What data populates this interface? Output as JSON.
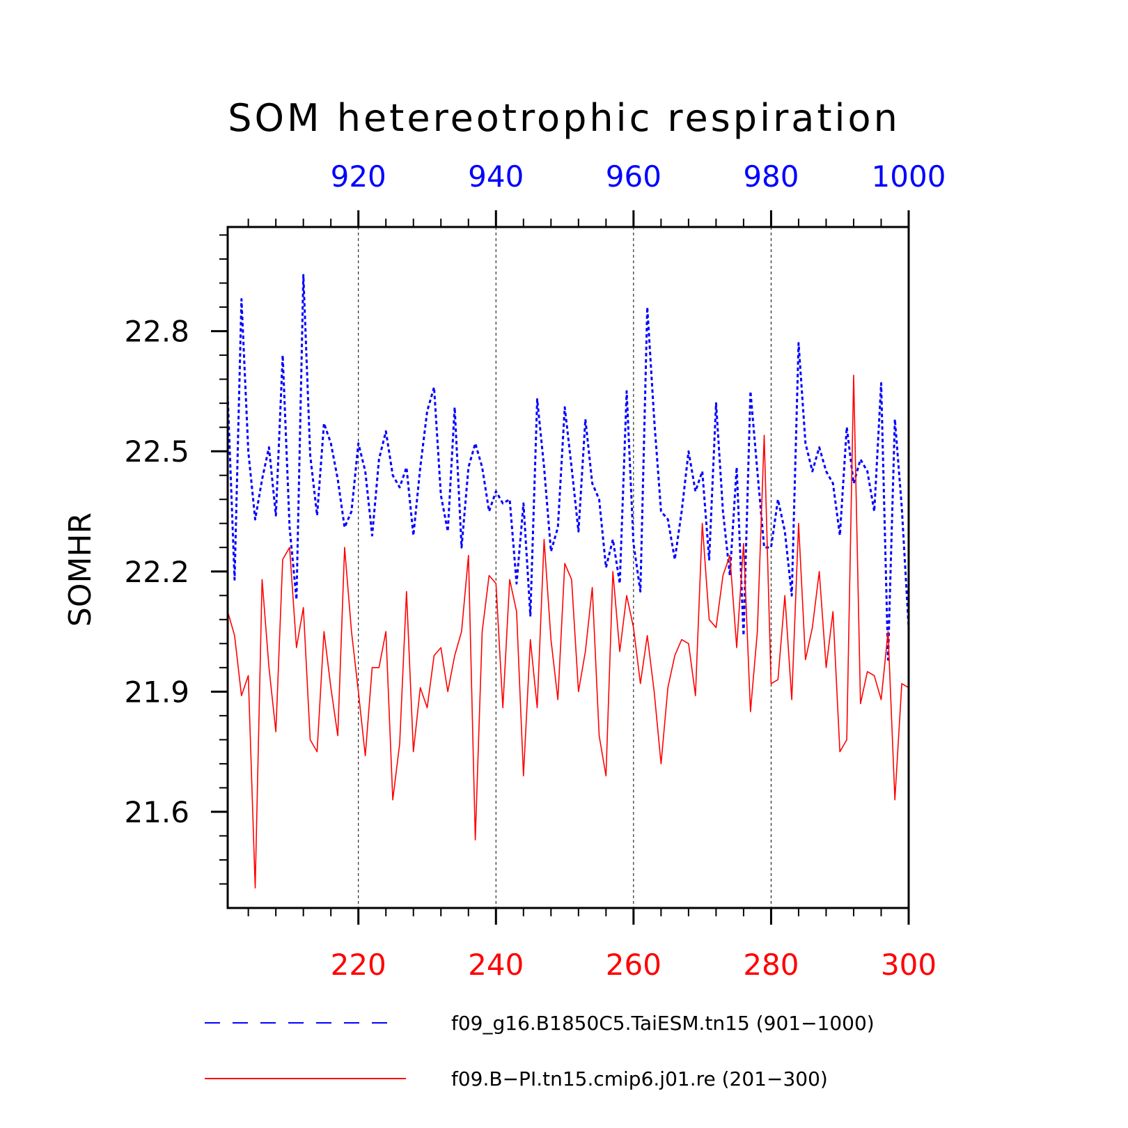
{
  "chart_data": {
    "type": "line",
    "title": "SOM hetereotrophic respiration",
    "ylabel": "SOMHR",
    "ylim": [
      21.36,
      23.06
    ],
    "yticks": [
      21.6,
      21.9,
      22.2,
      22.5,
      22.8
    ],
    "ytick_labels": [
      "21.6",
      "21.9",
      "22.2",
      "22.5",
      "22.8"
    ],
    "x_bottom": {
      "range": [
        201,
        300
      ],
      "ticks": [
        220,
        240,
        260,
        280,
        300
      ],
      "labels": [
        "220",
        "240",
        "260",
        "280",
        "300"
      ],
      "color": "#ff0000"
    },
    "x_top": {
      "range": [
        901,
        1000
      ],
      "ticks": [
        920,
        940,
        960,
        980,
        1000
      ],
      "labels": [
        "920",
        "940",
        "960",
        "980",
        "1000"
      ],
      "color": "#0000ff"
    },
    "grid": "vertical dashed at major ticks",
    "legend_placement": "bottom",
    "series": [
      {
        "name": "f09_g16.B1850C5.TaiESM.tn15 (901−1000)",
        "axis": "top",
        "color": "#0000ff",
        "style": "dashed",
        "x": [
          901,
          902,
          903,
          904,
          905,
          906,
          907,
          908,
          909,
          910,
          911,
          912,
          913,
          914,
          915,
          916,
          917,
          918,
          919,
          920,
          921,
          922,
          923,
          924,
          925,
          926,
          927,
          928,
          929,
          930,
          931,
          932,
          933,
          934,
          935,
          936,
          937,
          938,
          939,
          940,
          941,
          942,
          943,
          944,
          945,
          946,
          947,
          948,
          949,
          950,
          951,
          952,
          953,
          954,
          955,
          956,
          957,
          958,
          959,
          960,
          961,
          962,
          963,
          964,
          965,
          966,
          967,
          968,
          969,
          970,
          971,
          972,
          973,
          974,
          975,
          976,
          977,
          978,
          979,
          980,
          981,
          982,
          983,
          984,
          985,
          986,
          987,
          988,
          989,
          990,
          991,
          992,
          993,
          994,
          995,
          996,
          997,
          998,
          999,
          1000
        ],
        "values": [
          22.64,
          22.18,
          22.88,
          22.5,
          22.33,
          22.43,
          22.51,
          22.34,
          22.74,
          22.31,
          22.13,
          22.94,
          22.49,
          22.34,
          22.57,
          22.52,
          22.43,
          22.31,
          22.35,
          22.52,
          22.45,
          22.29,
          22.48,
          22.55,
          22.44,
          22.41,
          22.46,
          22.29,
          22.46,
          22.6,
          22.66,
          22.39,
          22.3,
          22.61,
          22.26,
          22.46,
          22.52,
          22.46,
          22.35,
          22.4,
          22.37,
          22.38,
          22.17,
          22.37,
          22.09,
          22.63,
          22.46,
          22.25,
          22.31,
          22.61,
          22.46,
          22.3,
          22.58,
          22.42,
          22.38,
          22.21,
          22.28,
          22.17,
          22.65,
          22.27,
          22.15,
          22.86,
          22.58,
          22.35,
          22.33,
          22.23,
          22.35,
          22.5,
          22.4,
          22.45,
          22.23,
          22.62,
          22.35,
          22.19,
          22.46,
          22.04,
          22.65,
          22.45,
          22.26,
          22.26,
          22.38,
          22.3,
          22.14,
          22.77,
          22.52,
          22.45,
          22.51,
          22.45,
          22.42,
          22.29,
          22.56,
          22.42,
          22.48,
          22.45,
          22.35,
          22.67,
          21.98,
          22.58,
          22.36,
          22.06
        ]
      },
      {
        "name": "f09.B−PI.tn15.cmip6.j01.re (201−300)",
        "axis": "bottom",
        "color": "#ff0000",
        "style": "solid",
        "x": [
          201,
          202,
          203,
          204,
          205,
          206,
          207,
          208,
          209,
          210,
          211,
          212,
          213,
          214,
          215,
          216,
          217,
          218,
          219,
          220,
          221,
          222,
          223,
          224,
          225,
          226,
          227,
          228,
          229,
          230,
          231,
          232,
          233,
          234,
          235,
          236,
          237,
          238,
          239,
          240,
          241,
          242,
          243,
          244,
          245,
          246,
          247,
          248,
          249,
          250,
          251,
          252,
          253,
          254,
          255,
          256,
          257,
          258,
          259,
          260,
          261,
          262,
          263,
          264,
          265,
          266,
          267,
          268,
          269,
          270,
          271,
          272,
          273,
          274,
          275,
          276,
          277,
          278,
          279,
          280,
          281,
          282,
          283,
          284,
          285,
          286,
          287,
          288,
          289,
          290,
          291,
          292,
          293,
          294,
          295,
          296,
          297,
          298,
          299,
          300
        ],
        "values": [
          22.1,
          22.04,
          21.89,
          21.94,
          21.41,
          22.18,
          21.96,
          21.8,
          22.23,
          22.26,
          22.01,
          22.11,
          21.78,
          21.75,
          22.05,
          21.91,
          21.79,
          22.26,
          22.05,
          21.9,
          21.74,
          21.96,
          21.96,
          22.05,
          21.63,
          21.77,
          22.15,
          21.75,
          21.91,
          21.86,
          21.99,
          22.01,
          21.9,
          21.99,
          22.05,
          22.24,
          21.53,
          22.05,
          22.19,
          22.17,
          21.86,
          22.18,
          22.1,
          21.69,
          22.03,
          21.86,
          22.28,
          22.03,
          21.88,
          22.22,
          22.18,
          21.9,
          22.0,
          22.16,
          21.79,
          21.69,
          22.2,
          22.0,
          22.14,
          22.06,
          21.92,
          22.04,
          21.9,
          21.72,
          21.91,
          21.99,
          22.03,
          22.02,
          21.89,
          22.32,
          22.08,
          22.06,
          22.19,
          22.24,
          22.01,
          22.27,
          21.85,
          22.05,
          22.54,
          21.92,
          21.93,
          22.14,
          21.88,
          22.32,
          21.98,
          22.06,
          22.2,
          21.96,
          22.1,
          21.75,
          21.78,
          22.69,
          21.87,
          21.95,
          21.94,
          21.88,
          22.05,
          21.63,
          21.92,
          21.91
        ]
      }
    ]
  }
}
